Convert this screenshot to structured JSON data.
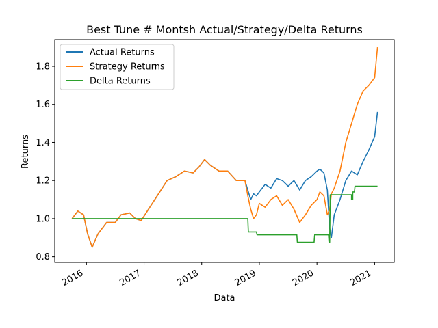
{
  "chart_data": {
    "type": "line",
    "title": "Best Tune # Montsh Actual/Strategy/Delta Returns",
    "xlabel": "Data",
    "ylabel": "Returns",
    "xlim": [
      2015.45,
      2021.34
    ],
    "ylim": [
      0.77,
      1.94
    ],
    "x_ticks": [
      2016,
      2017,
      2018,
      2019,
      2020,
      2021
    ],
    "x_tick_labels": [
      "2016",
      "2017",
      "2018",
      "2019",
      "2020",
      "2021"
    ],
    "y_ticks": [
      0.8,
      1.0,
      1.2,
      1.4,
      1.6,
      1.8
    ],
    "y_tick_labels": [
      "0.8",
      "1.0",
      "1.2",
      "1.4",
      "1.6",
      "1.8"
    ],
    "grid": false,
    "legend_position": "upper-left",
    "series": [
      {
        "name": "Actual Returns",
        "color": "#1f77b4",
        "x": [
          2015.75,
          2015.85,
          2015.95,
          2016.02,
          2016.1,
          2016.2,
          2016.35,
          2016.5,
          2016.6,
          2016.75,
          2016.85,
          2016.95,
          2017.1,
          2017.25,
          2017.4,
          2017.55,
          2017.7,
          2017.85,
          2017.95,
          2018.05,
          2018.15,
          2018.3,
          2018.45,
          2018.6,
          2018.75,
          2018.8,
          2018.85,
          2018.9,
          2018.95,
          2019.0,
          2019.1,
          2019.2,
          2019.3,
          2019.4,
          2019.5,
          2019.6,
          2019.7,
          2019.8,
          2019.9,
          2020.0,
          2020.05,
          2020.12,
          2020.18,
          2020.22,
          2020.25,
          2020.3,
          2020.4,
          2020.5,
          2020.6,
          2020.7,
          2020.8,
          2020.9,
          2021.0,
          2021.05
        ],
        "y": [
          1.0,
          1.04,
          1.02,
          0.92,
          0.85,
          0.92,
          0.98,
          0.98,
          1.02,
          1.03,
          1.0,
          0.99,
          1.06,
          1.13,
          1.2,
          1.22,
          1.25,
          1.24,
          1.27,
          1.31,
          1.28,
          1.25,
          1.25,
          1.2,
          1.2,
          1.15,
          1.1,
          1.13,
          1.12,
          1.14,
          1.18,
          1.16,
          1.21,
          1.2,
          1.17,
          1.2,
          1.15,
          1.2,
          1.22,
          1.25,
          1.26,
          1.24,
          1.15,
          0.95,
          0.9,
          1.02,
          1.1,
          1.2,
          1.25,
          1.23,
          1.3,
          1.36,
          1.43,
          1.56
        ]
      },
      {
        "name": "Strategy Returns",
        "color": "#ff7f0e",
        "x": [
          2015.75,
          2015.85,
          2015.95,
          2016.02,
          2016.1,
          2016.2,
          2016.35,
          2016.5,
          2016.6,
          2016.75,
          2016.85,
          2016.95,
          2017.1,
          2017.25,
          2017.4,
          2017.55,
          2017.7,
          2017.85,
          2017.95,
          2018.05,
          2018.15,
          2018.3,
          2018.45,
          2018.6,
          2018.75,
          2018.8,
          2018.85,
          2018.9,
          2018.95,
          2019.0,
          2019.1,
          2019.2,
          2019.3,
          2019.4,
          2019.5,
          2019.6,
          2019.7,
          2019.8,
          2019.9,
          2020.0,
          2020.05,
          2020.12,
          2020.18,
          2020.22,
          2020.25,
          2020.3,
          2020.4,
          2020.5,
          2020.6,
          2020.7,
          2020.8,
          2020.9,
          2021.0,
          2021.05
        ],
        "y": [
          1.0,
          1.04,
          1.02,
          0.92,
          0.85,
          0.92,
          0.98,
          0.98,
          1.02,
          1.03,
          1.0,
          0.99,
          1.06,
          1.13,
          1.2,
          1.22,
          1.25,
          1.24,
          1.27,
          1.31,
          1.28,
          1.25,
          1.25,
          1.2,
          1.2,
          1.12,
          1.05,
          1.0,
          1.02,
          1.08,
          1.06,
          1.1,
          1.12,
          1.07,
          1.1,
          1.05,
          0.98,
          1.02,
          1.07,
          1.1,
          1.14,
          1.12,
          1.02,
          1.05,
          1.13,
          1.16,
          1.25,
          1.4,
          1.5,
          1.6,
          1.67,
          1.7,
          1.74,
          1.9
        ]
      },
      {
        "name": "Delta Returns",
        "color": "#2ca02c",
        "x": [
          2015.75,
          2018.8,
          2018.81,
          2018.95,
          2018.96,
          2019.65,
          2019.66,
          2019.95,
          2019.96,
          2020.2,
          2020.21,
          2020.22,
          2020.23,
          2020.6,
          2020.6,
          2020.62,
          2020.62,
          2020.65,
          2020.66,
          2021.05
        ],
        "y": [
          1.0,
          1.0,
          0.93,
          0.93,
          0.915,
          0.915,
          0.876,
          0.876,
          0.915,
          0.915,
          0.876,
          0.876,
          1.125,
          1.125,
          1.1,
          1.1,
          1.14,
          1.14,
          1.17,
          1.17
        ]
      }
    ]
  }
}
